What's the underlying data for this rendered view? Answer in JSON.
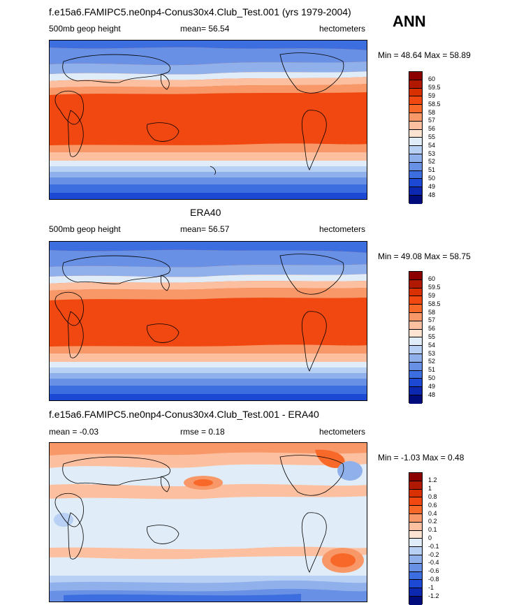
{
  "season": "ANN",
  "chart_data": [
    {
      "type": "heatmap",
      "title": "f.e15a6.FAMIPC5.ne0np4-Conus30x4.Club_Test.001 (yrs 1979-2004)",
      "left_label": "500mb geop height",
      "center_label": "mean=  56.54",
      "right_label": "hectometers",
      "minmax": "Min = 48.64 Max = 58.89",
      "min": 48.64,
      "max": 58.89,
      "mean": 56.54,
      "colorbar": {
        "labels": [
          "60",
          "59.5",
          "59",
          "58.5",
          "58",
          "57",
          "56",
          "55",
          "54",
          "53",
          "52",
          "51",
          "50",
          "49",
          "48"
        ],
        "colors": [
          "#8c0000",
          "#b01800",
          "#d83000",
          "#f04810",
          "#f86828",
          "#f89868",
          "#fcc0a0",
          "#fde4d2",
          "#e0ecf8",
          "#b8d0f4",
          "#90b0ec",
          "#6890e4",
          "#3c6ee0",
          "#1c48d4",
          "#0c28b0",
          "#000c7c"
        ]
      }
    },
    {
      "type": "heatmap",
      "title": "ERA40",
      "left_label": "500mb geop height",
      "center_label": "mean=  56.57",
      "right_label": "hectometers",
      "minmax": "Min = 49.08 Max = 58.75",
      "min": 49.08,
      "max": 58.75,
      "mean": 56.57,
      "colorbar": {
        "labels": [
          "60",
          "59.5",
          "59",
          "58.5",
          "58",
          "57",
          "56",
          "55",
          "54",
          "53",
          "52",
          "51",
          "50",
          "49",
          "48"
        ],
        "colors": [
          "#8c0000",
          "#b01800",
          "#d83000",
          "#f04810",
          "#f86828",
          "#f89868",
          "#fcc0a0",
          "#fde4d2",
          "#e0ecf8",
          "#b8d0f4",
          "#90b0ec",
          "#6890e4",
          "#3c6ee0",
          "#1c48d4",
          "#0c28b0",
          "#000c7c"
        ]
      }
    },
    {
      "type": "heatmap",
      "title": "f.e15a6.FAMIPC5.ne0np4-Conus30x4.Club_Test.001 - ERA40",
      "left_label": "mean =  -0.03",
      "center_label": "rmse =   0.18",
      "right_label": "hectometers",
      "minmax": "Min =  -1.03 Max =   0.48",
      "min": -1.03,
      "max": 0.48,
      "mean": -0.03,
      "rmse": 0.18,
      "colorbar": {
        "labels": [
          "1.2",
          "1",
          "0.8",
          "0.6",
          "0.4",
          "0.2",
          "0.1",
          "0",
          "-0.1",
          "-0.2",
          "-0.4",
          "-0.6",
          "-0.8",
          "-1",
          "-1.2"
        ],
        "colors": [
          "#8c0000",
          "#b01800",
          "#d83000",
          "#f04810",
          "#f86828",
          "#f89868",
          "#fcc0a0",
          "#fde4d2",
          "#e0ecf8",
          "#b8d0f4",
          "#90b0ec",
          "#6890e4",
          "#3c6ee0",
          "#1c48d4",
          "#0c28b0",
          "#000c7c"
        ]
      }
    }
  ]
}
